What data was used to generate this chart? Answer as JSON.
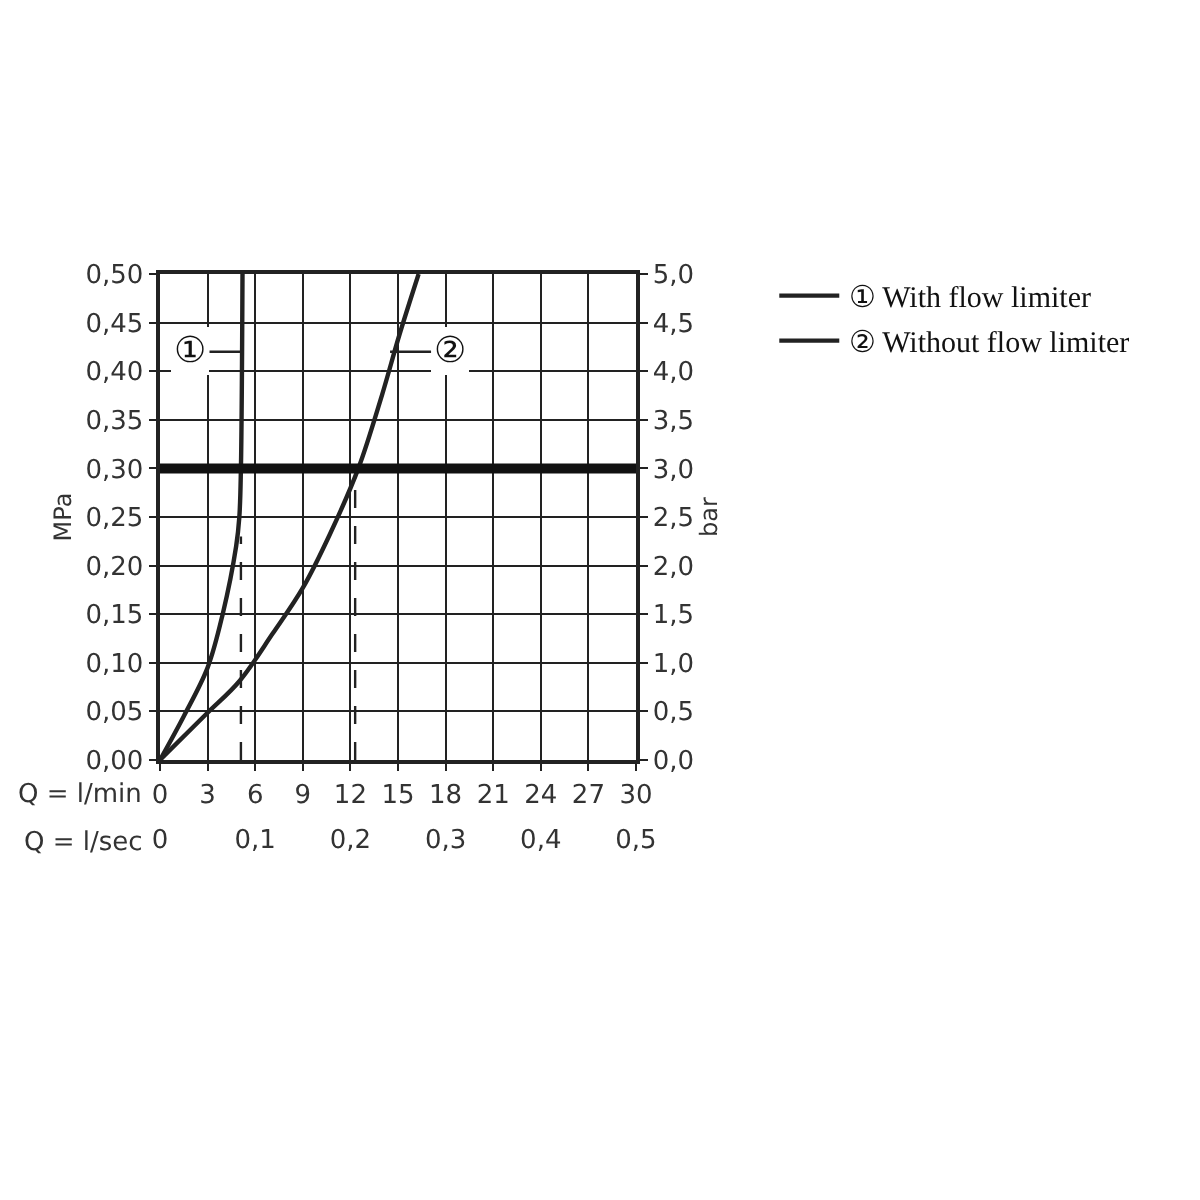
{
  "chart_data": {
    "type": "line",
    "ylabel": "MPa",
    "y2label": "bar",
    "series": [
      {
        "name": "① With flow limiter",
        "color": "#222222",
        "x": [
          0,
          1.5,
          3,
          3.95,
          4.8,
          5.0,
          5.1,
          5.2
        ],
        "values": [
          0,
          0.045,
          0.095,
          0.15,
          0.22,
          0.25,
          0.3,
          0.5
        ]
      },
      {
        "name": "② Without flow limiter",
        "color": "#222222",
        "x": [
          0,
          2.9,
          5,
          7.1,
          9,
          10.7,
          12.5,
          14,
          15.1,
          16.3
        ],
        "values": [
          0,
          0.047,
          0.081,
          0.13,
          0.177,
          0.232,
          0.3,
          0.376,
          0.438,
          0.5
        ]
      },
      {
        "color": "#222222",
        "line_style": "dashed",
        "x": [
          5.1,
          5.1
        ],
        "values": [
          0,
          0.23
        ]
      },
      {
        "color": "#222222",
        "line_style": "dashed",
        "x": [
          12.3,
          12.3
        ],
        "values": [
          0,
          0.3
        ]
      }
    ],
    "ref_lines": [
      {
        "axis": "y",
        "value": 0.3,
        "color": "#111111"
      }
    ],
    "xlim": [
      0,
      30
    ],
    "xticks": [
      0,
      3,
      6,
      9,
      12,
      15,
      18,
      21,
      24,
      27,
      30
    ],
    "x2lim": [
      0,
      0.5
    ],
    "x2ticks": [
      {
        "value": 0,
        "label": "0"
      },
      {
        "value": 0.1,
        "label": "0,1"
      },
      {
        "value": 0.2,
        "label": "0,2"
      },
      {
        "value": 0.3,
        "label": "0,3"
      },
      {
        "value": 0.4,
        "label": "0,4"
      },
      {
        "value": 0.5,
        "label": "0,5"
      }
    ],
    "ylim": [
      0,
      0.5
    ],
    "yticks": [
      {
        "value": 0,
        "label": "0,00"
      },
      {
        "value": 0.05,
        "label": "0,05"
      },
      {
        "value": 0.1,
        "label": "0,10"
      },
      {
        "value": 0.15,
        "label": "0,15"
      },
      {
        "value": 0.2,
        "label": "0,20"
      },
      {
        "value": 0.25,
        "label": "0,25"
      },
      {
        "value": 0.3,
        "label": "0,30"
      },
      {
        "value": 0.35,
        "label": "0,35"
      },
      {
        "value": 0.4,
        "label": "0,40"
      },
      {
        "value": 0.45,
        "label": "0,45"
      },
      {
        "value": 0.5,
        "label": "0,50"
      }
    ],
    "y2lim": [
      0,
      5
    ],
    "y2ticks": [
      {
        "value": 0,
        "label": "0,0"
      },
      {
        "value": 0.5,
        "label": "0,5"
      },
      {
        "value": 1,
        "label": "1,0"
      },
      {
        "value": 1.5,
        "label": "1,5"
      },
      {
        "value": 2,
        "label": "2,0"
      },
      {
        "value": 2.5,
        "label": "2,5"
      },
      {
        "value": 3,
        "label": "3,0"
      },
      {
        "value": 3.5,
        "label": "3,5"
      },
      {
        "value": 4,
        "label": "4,0"
      },
      {
        "value": 4.5,
        "label": "4,5"
      },
      {
        "value": 5,
        "label": "5,0"
      }
    ],
    "annotations": [
      "Q = l/min",
      "Q = l/sec",
      {
        "text": "①",
        "x": 5.2,
        "y": 0.42
      },
      {
        "text": "②",
        "x": 14.5,
        "y": 0.42
      }
    ],
    "grid": true,
    "legend": "top right",
    "marker": "none",
    "line_style": "solid"
  }
}
